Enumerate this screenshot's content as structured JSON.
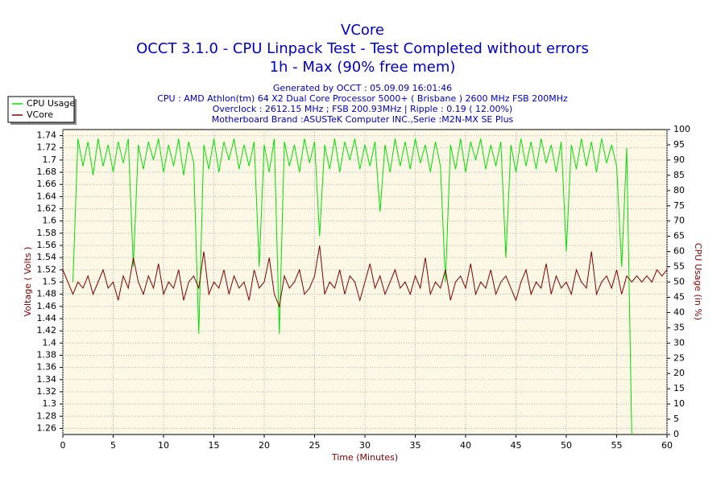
{
  "chart_data": {
    "type": "line",
    "title": "VCore",
    "subtitle": [
      "OCCT 3.1.0 - CPU Linpack Test - Test Completed without errors",
      "1h - Max (90% free mem)"
    ],
    "info": [
      "Generated by OCCT : 05.09.09 16:01:46",
      "CPU : AMD Athlon(tm) 64 X2 Dual Core Processor 5000+ ( Brisbane ) 2600 MHz FSB 200MHz",
      "Overclock : 2612.15 MHz ; FSB 200.93MHz | Ripple : 0.19 ( 12.00%)",
      "Motherboard Brand :ASUSTeK Computer INC.,Serie :M2N-MX SE Plus"
    ],
    "xlabel": "Time (Minutes)",
    "ylabel": "Voltage ( Volts )",
    "y2label": "CPU Usage (in %)",
    "xlim": [
      0,
      60
    ],
    "xticks": [
      0,
      5,
      10,
      15,
      20,
      25,
      30,
      35,
      40,
      45,
      50,
      55,
      60
    ],
    "ylim": [
      1.25,
      1.75
    ],
    "yticks": [
      1.26,
      1.28,
      1.3,
      1.32,
      1.34,
      1.36,
      1.38,
      1.4,
      1.42,
      1.44,
      1.46,
      1.48,
      1.5,
      1.52,
      1.54,
      1.56,
      1.58,
      1.6,
      1.62,
      1.64,
      1.66,
      1.68,
      1.7,
      1.72,
      1.74
    ],
    "y2lim": [
      0,
      100
    ],
    "y2ticks": [
      0,
      5,
      10,
      15,
      20,
      25,
      30,
      35,
      40,
      45,
      50,
      55,
      60,
      65,
      70,
      75,
      80,
      85,
      90,
      95,
      100
    ],
    "grid": true,
    "legend": "top-left",
    "x": [
      0,
      0.5,
      1,
      1.5,
      2,
      2.5,
      3,
      3.5,
      4,
      4.5,
      5,
      5.5,
      6,
      6.5,
      7,
      7.5,
      8,
      8.5,
      9,
      9.5,
      10,
      10.5,
      11,
      11.5,
      12,
      12.5,
      13,
      13.5,
      14,
      14.5,
      15,
      15.5,
      16,
      16.5,
      17,
      17.5,
      18,
      18.5,
      19,
      19.5,
      20,
      20.5,
      21,
      21.5,
      22,
      22.5,
      23,
      23.5,
      24,
      24.5,
      25,
      25.5,
      26,
      26.5,
      27,
      27.5,
      28,
      28.5,
      29,
      29.5,
      30,
      30.5,
      31,
      31.5,
      32,
      32.5,
      33,
      33.5,
      34,
      34.5,
      35,
      35.5,
      36,
      36.5,
      37,
      37.5,
      38,
      38.5,
      39,
      39.5,
      40,
      40.5,
      41,
      41.5,
      42,
      42.5,
      43,
      43.5,
      44,
      44.5,
      45,
      45.5,
      46,
      46.5,
      47,
      47.5,
      48,
      48.5,
      49,
      49.5,
      50,
      50.5,
      51,
      51.5,
      52,
      52.5,
      53,
      53.5,
      54,
      54.5,
      55,
      55.5,
      56,
      56.5,
      57,
      57.5,
      58,
      58.5,
      59,
      59.5,
      60
    ],
    "series": [
      {
        "name": "CPU Usage",
        "color": "#00e000",
        "axis": "y2",
        "values": [
          null,
          null,
          50,
          97,
          88,
          96,
          85,
          97,
          88,
          95,
          86,
          96,
          89,
          97,
          55,
          95,
          87,
          96,
          90,
          97,
          86,
          95,
          88,
          97,
          85,
          96,
          89,
          33,
          95,
          87,
          97,
          86,
          96,
          90,
          97,
          87,
          95,
          88,
          96,
          55,
          95,
          86,
          97,
          33,
          96,
          88,
          95,
          86,
          97,
          89,
          96,
          65,
          95,
          87,
          97,
          86,
          96,
          90,
          97,
          87,
          95,
          88,
          96,
          73,
          95,
          86,
          97,
          88,
          96,
          87,
          97,
          89,
          95,
          86,
          96,
          88,
          50,
          95,
          87,
          97,
          86,
          96,
          90,
          97,
          87,
          95,
          88,
          96,
          58,
          95,
          86,
          97,
          88,
          96,
          87,
          97,
          89,
          95,
          86,
          96,
          60,
          95,
          87,
          97,
          88,
          96,
          86,
          97,
          89,
          95,
          88,
          55,
          94,
          0,
          null,
          null,
          null,
          null,
          null,
          null,
          null
        ]
      },
      {
        "name": "VCore",
        "color": "#800000",
        "values": [
          1.52,
          1.5,
          1.48,
          1.5,
          1.49,
          1.51,
          1.48,
          1.5,
          1.52,
          1.49,
          1.5,
          1.47,
          1.51,
          1.49,
          1.54,
          1.5,
          1.48,
          1.51,
          1.49,
          1.53,
          1.48,
          1.5,
          1.49,
          1.52,
          1.47,
          1.5,
          1.51,
          1.49,
          1.55,
          1.48,
          1.5,
          1.49,
          1.52,
          1.48,
          1.51,
          1.49,
          1.5,
          1.47,
          1.52,
          1.49,
          1.5,
          1.54,
          1.48,
          1.46,
          1.51,
          1.49,
          1.5,
          1.52,
          1.48,
          1.49,
          1.51,
          1.56,
          1.48,
          1.5,
          1.49,
          1.52,
          1.48,
          1.51,
          1.5,
          1.47,
          1.5,
          1.53,
          1.49,
          1.51,
          1.48,
          1.5,
          1.52,
          1.49,
          1.5,
          1.48,
          1.51,
          1.49,
          1.54,
          1.48,
          1.5,
          1.49,
          1.52,
          1.47,
          1.5,
          1.51,
          1.49,
          1.53,
          1.48,
          1.5,
          1.49,
          1.52,
          1.48,
          1.5,
          1.51,
          1.49,
          1.47,
          1.5,
          1.52,
          1.48,
          1.5,
          1.49,
          1.53,
          1.48,
          1.51,
          1.49,
          1.5,
          1.48,
          1.52,
          1.5,
          1.49,
          1.55,
          1.48,
          1.5,
          1.51,
          1.49,
          1.52,
          1.48,
          1.51,
          1.5,
          1.51,
          1.5,
          1.51,
          1.5,
          1.52,
          1.51,
          1.52
        ]
      }
    ]
  }
}
